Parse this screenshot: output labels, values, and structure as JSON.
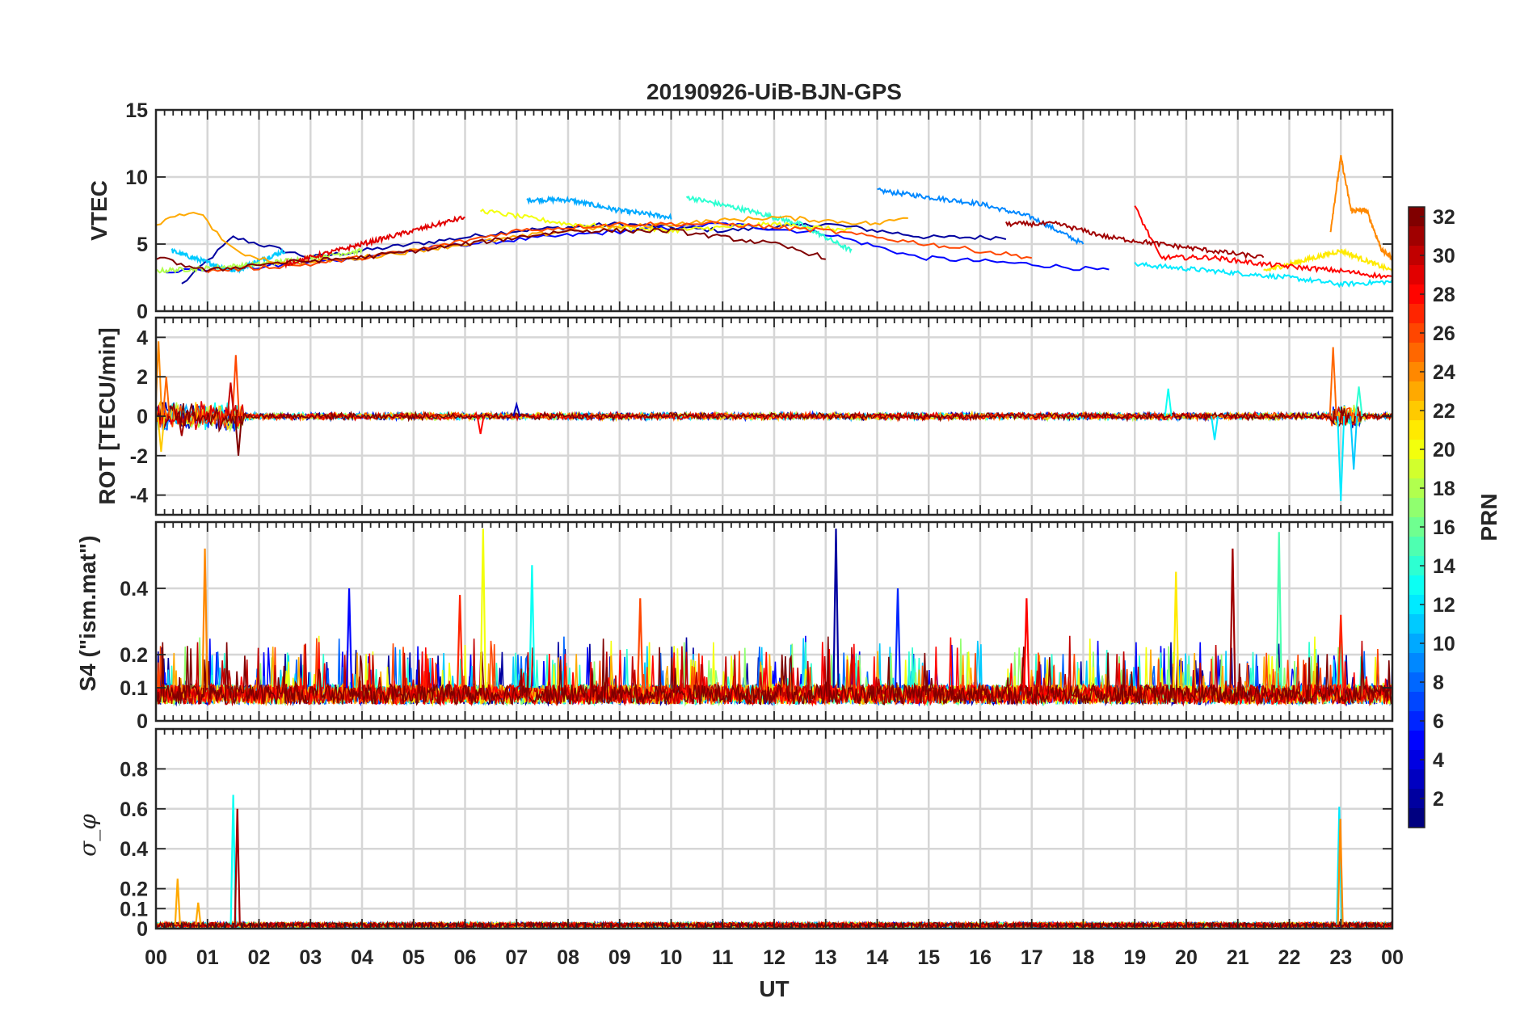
{
  "chart_data": {
    "title": "20190926-UiB-BJN-GPS",
    "xlabel": "UT",
    "x_ticks": [
      "00",
      "01",
      "02",
      "03",
      "04",
      "05",
      "06",
      "07",
      "08",
      "09",
      "10",
      "11",
      "12",
      "13",
      "14",
      "15",
      "16",
      "17",
      "18",
      "19",
      "20",
      "21",
      "22",
      "23",
      "00"
    ],
    "x_range_hours": [
      0,
      24
    ],
    "colorbar": {
      "label": "PRN",
      "range": [
        1,
        32
      ],
      "ticks": [
        "2",
        "4",
        "6",
        "8",
        "10",
        "12",
        "14",
        "16",
        "18",
        "20",
        "22",
        "24",
        "26",
        "28",
        "30",
        "32"
      ],
      "colormap": "jet"
    },
    "panels": [
      {
        "id": "vtec",
        "type": "line",
        "ylabel": "VTEC",
        "ylim": [
          0,
          15
        ],
        "y_ticks": [
          0,
          5,
          10,
          15
        ],
        "y_tick_labels": [
          "0",
          "5",
          "10",
          "15"
        ],
        "grid": true,
        "series": [
          {
            "prn": 2,
            "x": [
              0.5,
              1.5,
              3.0,
              5.0,
              7.0,
              9.0,
              11.0,
              13.0,
              15.0,
              16.5
            ],
            "y": [
              2.0,
              5.5,
              4.0,
              5.0,
              6.0,
              6.5,
              6.0,
              6.5,
              5.5,
              5.5
            ]
          },
          {
            "prn": 5,
            "x": [
              0.2,
              1.8,
              3.5,
              6.0,
              8.5,
              11.0,
              13.0,
              14.8,
              17.0,
              18.5
            ],
            "y": [
              3.0,
              3.2,
              3.8,
              5.0,
              5.8,
              6.5,
              5.8,
              4.0,
              3.5,
              3.0
            ]
          },
          {
            "prn": 9,
            "x": [
              14.0,
              15.0,
              16.0,
              17.0,
              18.0
            ],
            "y": [
              9.0,
              8.5,
              8.0,
              7.0,
              5.0
            ]
          },
          {
            "prn": 10,
            "x": [
              7.2,
              8.0,
              9.0,
              10.0
            ],
            "y": [
              8.3,
              8.3,
              7.5,
              7.0
            ]
          },
          {
            "prn": 11,
            "x": [
              0.3,
              1.5,
              2.5
            ],
            "y": [
              4.5,
              3.0,
              4.5
            ]
          },
          {
            "prn": 12,
            "x": [
              19.0,
              20.5,
              22.0,
              23.0,
              24.0
            ],
            "y": [
              3.5,
              3.0,
              2.5,
              2.0,
              2.2
            ]
          },
          {
            "prn": 14,
            "x": [
              10.3,
              11.5,
              12.5,
              13.5
            ],
            "y": [
              8.5,
              7.5,
              6.5,
              4.5
            ]
          },
          {
            "prn": 18,
            "x": [
              0.0,
              1.0,
              2.0,
              3.0,
              4.0
            ],
            "y": [
              3.0,
              3.2,
              3.5,
              4.0,
              4.5
            ]
          },
          {
            "prn": 20,
            "x": [
              6.3,
              8.0,
              10.0,
              12.0,
              13.5
            ],
            "y": [
              7.5,
              6.5,
              6.0,
              6.5,
              6.0
            ]
          },
          {
            "prn": 21,
            "x": [
              21.5,
              22.5,
              23.0,
              24.0
            ],
            "y": [
              3.0,
              4.0,
              4.5,
              3.0
            ]
          },
          {
            "prn": 23,
            "x": [
              0.0,
              0.8,
              1.5,
              2.5,
              4.0,
              6.0,
              8.0,
              10.0,
              12.0,
              14.0,
              14.6
            ],
            "y": [
              6.5,
              7.5,
              4.5,
              3.5,
              4.0,
              5.0,
              6.0,
              6.5,
              7.0,
              6.5,
              7.0
            ]
          },
          {
            "prn": 24,
            "x": [
              22.8,
              23.0,
              23.2,
              23.5,
              23.8,
              24.0
            ],
            "y": [
              6.0,
              11.5,
              7.5,
              7.5,
              4.5,
              4.0
            ]
          },
          {
            "prn": 26,
            "x": [
              1.0,
              3.0,
              5.0,
              7.0,
              9.0,
              11.0,
              13.0,
              15.0,
              17.0
            ],
            "y": [
              3.0,
              3.5,
              4.5,
              6.0,
              6.5,
              6.5,
              6.0,
              5.0,
              4.0
            ]
          },
          {
            "prn": 28,
            "x": [
              19.0,
              19.5,
              20.5,
              21.5,
              23.0,
              24.0
            ],
            "y": [
              7.8,
              4.0,
              4.0,
              3.5,
              3.0,
              2.5
            ]
          },
          {
            "prn": 29,
            "x": [
              2.5,
              4.0,
              5.5,
              6.0
            ],
            "y": [
              3.5,
              5.0,
              6.5,
              7.0
            ]
          },
          {
            "prn": 31,
            "x": [
              16.5,
              17.5,
              18.5,
              19.5,
              20.5,
              21.5
            ],
            "y": [
              6.5,
              6.5,
              5.5,
              5.0,
              4.5,
              4.0
            ]
          },
          {
            "prn": 32,
            "x": [
              0.0,
              1.0,
              2.0,
              4.0,
              6.0,
              8.0,
              10.0,
              12.0,
              13.0
            ],
            "y": [
              4.0,
              3.0,
              3.5,
              4.0,
              5.0,
              6.0,
              6.0,
              5.0,
              4.0
            ]
          }
        ]
      },
      {
        "id": "rot",
        "type": "line",
        "ylabel": "ROT [TECU/min]",
        "ylim": [
          -5,
          5
        ],
        "y_ticks": [
          -4,
          -2,
          0,
          2,
          4
        ],
        "y_tick_labels": [
          "-4",
          "-2",
          "0",
          "2",
          "4"
        ],
        "grid": true,
        "noise_floor": 0.2,
        "spikes": [
          {
            "prn": 24,
            "x": 0.05,
            "y": 3.8
          },
          {
            "prn": 22,
            "x": 0.1,
            "y": -1.8
          },
          {
            "prn": 25,
            "x": 0.2,
            "y": 2.0
          },
          {
            "prn": 31,
            "x": 0.5,
            "y": -1.0
          },
          {
            "prn": 26,
            "x": 1.55,
            "y": 3.1
          },
          {
            "prn": 32,
            "x": 1.6,
            "y": -2.0
          },
          {
            "prn": 30,
            "x": 1.45,
            "y": 1.7
          },
          {
            "prn": 13,
            "x": 19.65,
            "y": 1.4
          },
          {
            "prn": 12,
            "x": 20.55,
            "y": -1.2
          },
          {
            "prn": 25,
            "x": 22.85,
            "y": 3.5
          },
          {
            "prn": 12,
            "x": 23.0,
            "y": -4.3
          },
          {
            "prn": 11,
            "x": 23.25,
            "y": -2.7
          },
          {
            "prn": 14,
            "x": 23.35,
            "y": 1.5
          },
          {
            "prn": 3,
            "x": 7.0,
            "y": 0.6
          },
          {
            "prn": 28,
            "x": 6.3,
            "y": -0.9
          }
        ]
      },
      {
        "id": "s4",
        "type": "line",
        "ylabel": "S4 (\"ism.mat\")",
        "ylim": [
          0,
          0.6
        ],
        "y_ticks": [
          0,
          0.1,
          0.2,
          0.4
        ],
        "y_tick_labels": [
          "0",
          "0.1",
          "0.2",
          "0.4"
        ],
        "grid": true,
        "baseline": 0.08,
        "peaks": [
          {
            "prn": 24,
            "x": 0.95,
            "y": 0.52
          },
          {
            "prn": 5,
            "x": 3.75,
            "y": 0.4
          },
          {
            "prn": 27,
            "x": 5.9,
            "y": 0.38
          },
          {
            "prn": 20,
            "x": 6.35,
            "y": 0.58
          },
          {
            "prn": 13,
            "x": 7.3,
            "y": 0.47
          },
          {
            "prn": 26,
            "x": 9.4,
            "y": 0.37
          },
          {
            "prn": 2,
            "x": 13.2,
            "y": 0.58
          },
          {
            "prn": 6,
            "x": 14.4,
            "y": 0.4
          },
          {
            "prn": 28,
            "x": 16.9,
            "y": 0.37
          },
          {
            "prn": 21,
            "x": 19.8,
            "y": 0.45
          },
          {
            "prn": 31,
            "x": 20.9,
            "y": 0.52
          },
          {
            "prn": 15,
            "x": 21.8,
            "y": 0.57
          },
          {
            "prn": 27,
            "x": 23.0,
            "y": 0.32
          }
        ]
      },
      {
        "id": "sigma_phi",
        "type": "line",
        "ylabel": "σ_φ",
        "ylim": [
          0,
          1
        ],
        "y_ticks": [
          0,
          0.1,
          0.2,
          0.4,
          0.6,
          0.8
        ],
        "y_tick_labels": [
          "0",
          "0.1",
          "0.2",
          "0.4",
          "0.6",
          "0.8"
        ],
        "grid": true,
        "baseline": 0.02,
        "peaks": [
          {
            "prn": 23,
            "x": 0.42,
            "y": 0.25
          },
          {
            "prn": 23,
            "x": 0.82,
            "y": 0.13
          },
          {
            "prn": 13,
            "x": 1.5,
            "y": 0.67
          },
          {
            "prn": 31,
            "x": 1.58,
            "y": 0.6
          },
          {
            "prn": 12,
            "x": 22.97,
            "y": 0.61
          },
          {
            "prn": 24,
            "x": 22.99,
            "y": 0.55
          }
        ]
      }
    ]
  }
}
